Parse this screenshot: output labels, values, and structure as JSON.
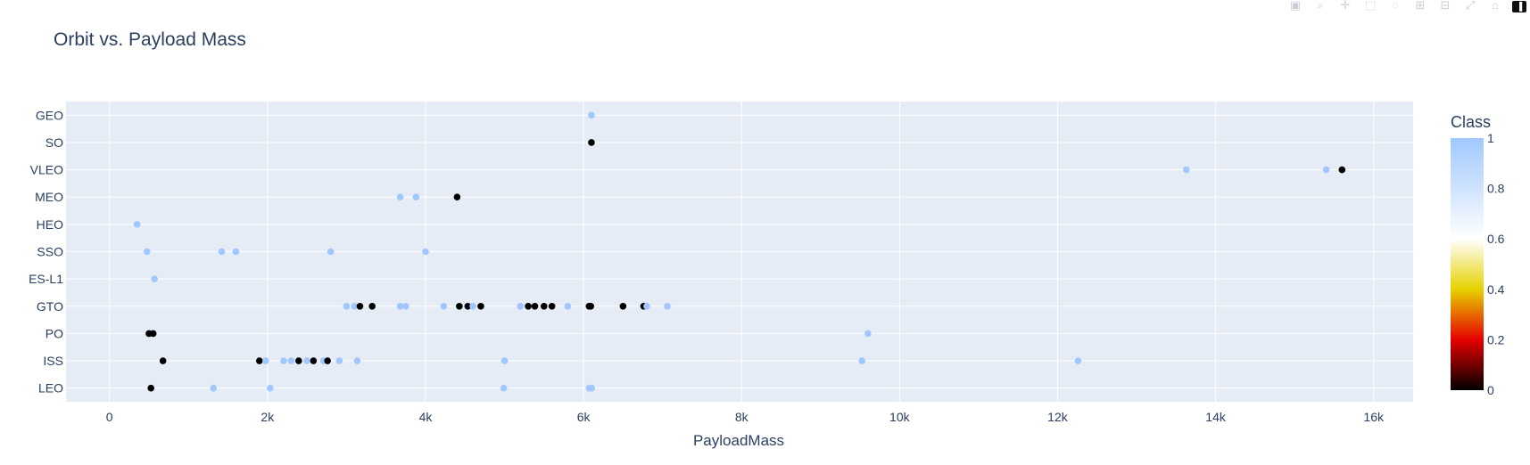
{
  "modebar": {
    "icons": [
      "camera-icon",
      "zoom-icon",
      "pan-icon",
      "box-select-icon",
      "lasso-select-icon",
      "zoom-in-icon",
      "zoom-out-icon",
      "autoscale-icon",
      "reset-axes-icon",
      "plotly-logo-icon"
    ]
  },
  "chart_data": {
    "type": "scatter",
    "title": "Orbit vs. Payload Mass",
    "xlabel": "PayloadMass",
    "ylabel": "",
    "xlim": [
      -550,
      16500
    ],
    "x_ticks": [
      0,
      2000,
      4000,
      6000,
      8000,
      10000,
      12000,
      14000,
      16000
    ],
    "x_tick_labels": [
      "0",
      "2k",
      "4k",
      "6k",
      "8k",
      "10k",
      "12k",
      "14k",
      "16k"
    ],
    "categories": [
      "LEO",
      "ISS",
      "PO",
      "GTO",
      "ES-L1",
      "SSO",
      "HEO",
      "MEO",
      "VLEO",
      "SO",
      "GEO"
    ],
    "grid": true,
    "colorbar": {
      "title": "Class",
      "range": [
        0,
        1
      ],
      "tick_values": [
        0,
        0.2,
        0.4,
        0.6,
        0.8,
        1
      ],
      "tick_labels": [
        "0",
        "0.2",
        "0.4",
        "0.6",
        "0.8",
        "1"
      ],
      "colorscale": [
        [
          0,
          "#000000"
        ],
        [
          0.2,
          "#e60000"
        ],
        [
          0.4,
          "#e6d200"
        ],
        [
          0.6,
          "#ffffff"
        ],
        [
          1,
          "#a0c8ff"
        ]
      ]
    },
    "points": [
      {
        "x": 6100,
        "y": "GEO",
        "class": 1
      },
      {
        "x": 6100,
        "y": "SO",
        "class": 0
      },
      {
        "x": 13630,
        "y": "VLEO",
        "class": 1
      },
      {
        "x": 15400,
        "y": "VLEO",
        "class": 1
      },
      {
        "x": 15600,
        "y": "VLEO",
        "class": 0
      },
      {
        "x": 3680,
        "y": "MEO",
        "class": 1
      },
      {
        "x": 3880,
        "y": "MEO",
        "class": 1
      },
      {
        "x": 4400,
        "y": "MEO",
        "class": 0
      },
      {
        "x": 350,
        "y": "HEO",
        "class": 1
      },
      {
        "x": 475,
        "y": "SSO",
        "class": 1
      },
      {
        "x": 1420,
        "y": "SSO",
        "class": 1
      },
      {
        "x": 1600,
        "y": "SSO",
        "class": 1
      },
      {
        "x": 2800,
        "y": "SSO",
        "class": 1
      },
      {
        "x": 4000,
        "y": "SSO",
        "class": 1
      },
      {
        "x": 570,
        "y": "ES-L1",
        "class": 1
      },
      {
        "x": 3000,
        "y": "GTO",
        "class": 1
      },
      {
        "x": 3100,
        "y": "GTO",
        "class": 1
      },
      {
        "x": 3170,
        "y": "GTO",
        "class": 0
      },
      {
        "x": 3325,
        "y": "GTO",
        "class": 0
      },
      {
        "x": 3680,
        "y": "GTO",
        "class": 1
      },
      {
        "x": 3750,
        "y": "GTO",
        "class": 1
      },
      {
        "x": 4230,
        "y": "GTO",
        "class": 1
      },
      {
        "x": 4428,
        "y": "GTO",
        "class": 0
      },
      {
        "x": 4535,
        "y": "GTO",
        "class": 0
      },
      {
        "x": 4600,
        "y": "GTO",
        "class": 1
      },
      {
        "x": 4700,
        "y": "GTO",
        "class": 0
      },
      {
        "x": 5200,
        "y": "GTO",
        "class": 1
      },
      {
        "x": 5300,
        "y": "GTO",
        "class": 0
      },
      {
        "x": 5384,
        "y": "GTO",
        "class": 0
      },
      {
        "x": 5500,
        "y": "GTO",
        "class": 0
      },
      {
        "x": 5600,
        "y": "GTO",
        "class": 0
      },
      {
        "x": 5800,
        "y": "GTO",
        "class": 1
      },
      {
        "x": 6070,
        "y": "GTO",
        "class": 0
      },
      {
        "x": 6092,
        "y": "GTO",
        "class": 0
      },
      {
        "x": 6500,
        "y": "GTO",
        "class": 0
      },
      {
        "x": 6761,
        "y": "GTO",
        "class": 0
      },
      {
        "x": 6800,
        "y": "GTO",
        "class": 1
      },
      {
        "x": 7060,
        "y": "GTO",
        "class": 1
      },
      {
        "x": 500,
        "y": "PO",
        "class": 0
      },
      {
        "x": 553,
        "y": "PO",
        "class": 0
      },
      {
        "x": 9600,
        "y": "PO",
        "class": 1
      },
      {
        "x": 677,
        "y": "ISS",
        "class": 0
      },
      {
        "x": 1898,
        "y": "ISS",
        "class": 0
      },
      {
        "x": 1977,
        "y": "ISS",
        "class": 1
      },
      {
        "x": 2205,
        "y": "ISS",
        "class": 1
      },
      {
        "x": 2300,
        "y": "ISS",
        "class": 1
      },
      {
        "x": 2395,
        "y": "ISS",
        "class": 0
      },
      {
        "x": 2500,
        "y": "ISS",
        "class": 1
      },
      {
        "x": 2582,
        "y": "ISS",
        "class": 0
      },
      {
        "x": 2708,
        "y": "ISS",
        "class": 1
      },
      {
        "x": 2760,
        "y": "ISS",
        "class": 0
      },
      {
        "x": 2910,
        "y": "ISS",
        "class": 1
      },
      {
        "x": 3136,
        "y": "ISS",
        "class": 1
      },
      {
        "x": 5000,
        "y": "ISS",
        "class": 1
      },
      {
        "x": 9525,
        "y": "ISS",
        "class": 1
      },
      {
        "x": 12259,
        "y": "ISS",
        "class": 1
      },
      {
        "x": 525,
        "y": "LEO",
        "class": 0
      },
      {
        "x": 1316,
        "y": "LEO",
        "class": 1
      },
      {
        "x": 2034,
        "y": "LEO",
        "class": 1
      },
      {
        "x": 4990,
        "y": "LEO",
        "class": 1
      },
      {
        "x": 6070,
        "y": "LEO",
        "class": 1
      },
      {
        "x": 6104,
        "y": "LEO",
        "class": 1
      }
    ]
  }
}
